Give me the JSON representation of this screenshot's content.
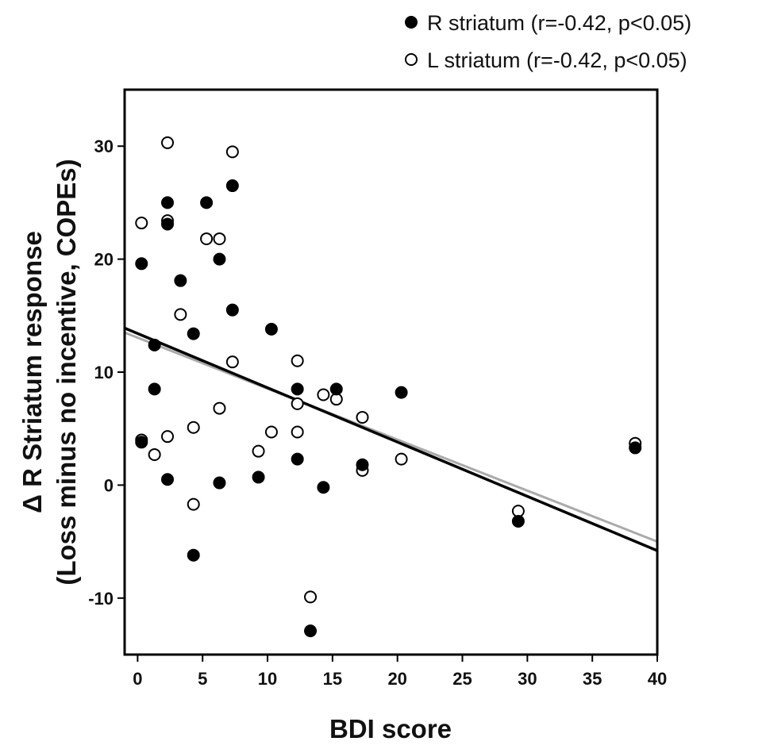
{
  "chart_data": {
    "type": "scatter",
    "xlabel": "BDI score",
    "ylabel_line1": "Δ R Striatum response",
    "ylabel_line2": "(Loss minus no incentive, COPEs)",
    "xlim": [
      -1,
      40
    ],
    "ylim": [
      -15,
      35
    ],
    "xticks": [
      0,
      5,
      10,
      15,
      20,
      25,
      30,
      35,
      40
    ],
    "yticks": [
      -10,
      0,
      10,
      20,
      30
    ],
    "grid": false,
    "legend_position": "above-top-right",
    "series": [
      {
        "name": "R striatum (r=-0.42, p<0.05)",
        "marker": "filled-circle",
        "color": "#000000",
        "points": [
          [
            0.3,
            19.6
          ],
          [
            0.3,
            3.8
          ],
          [
            1.3,
            12.4
          ],
          [
            1.3,
            8.5
          ],
          [
            2.3,
            25.0
          ],
          [
            2.3,
            23.1
          ],
          [
            2.3,
            0.5
          ],
          [
            3.3,
            18.1
          ],
          [
            4.3,
            13.4
          ],
          [
            4.3,
            -6.2
          ],
          [
            5.3,
            25.0
          ],
          [
            6.3,
            20.0
          ],
          [
            6.3,
            0.2
          ],
          [
            7.3,
            26.5
          ],
          [
            7.3,
            15.5
          ],
          [
            9.3,
            0.7
          ],
          [
            10.3,
            13.8
          ],
          [
            12.3,
            8.5
          ],
          [
            12.3,
            2.3
          ],
          [
            13.3,
            -12.9
          ],
          [
            14.3,
            -0.2
          ],
          [
            15.3,
            8.5
          ],
          [
            17.3,
            1.8
          ],
          [
            20.3,
            8.2
          ],
          [
            29.3,
            -3.2
          ],
          [
            38.3,
            3.3
          ]
        ]
      },
      {
        "name": "L striatum (r=-0.42, p<0.05)",
        "marker": "open-circle",
        "color": "#000000",
        "points": [
          [
            0.3,
            23.2
          ],
          [
            0.3,
            4.0
          ],
          [
            1.3,
            2.7
          ],
          [
            2.3,
            30.3
          ],
          [
            2.3,
            23.4
          ],
          [
            2.3,
            4.3
          ],
          [
            3.3,
            15.1
          ],
          [
            4.3,
            5.1
          ],
          [
            4.3,
            -1.7
          ],
          [
            5.3,
            21.8
          ],
          [
            6.3,
            21.8
          ],
          [
            6.3,
            6.8
          ],
          [
            7.3,
            29.5
          ],
          [
            7.3,
            10.9
          ],
          [
            9.3,
            3.0
          ],
          [
            10.3,
            4.7
          ],
          [
            12.3,
            11.0
          ],
          [
            12.3,
            7.2
          ],
          [
            12.3,
            4.7
          ],
          [
            13.3,
            -9.9
          ],
          [
            14.3,
            8.0
          ],
          [
            15.3,
            7.6
          ],
          [
            17.3,
            6.0
          ],
          [
            17.3,
            1.3
          ],
          [
            20.3,
            2.3
          ],
          [
            29.3,
            -2.3
          ],
          [
            38.3,
            3.7
          ]
        ]
      }
    ],
    "fit_lines": [
      {
        "for": "R striatum",
        "color": "#000000",
        "from": [
          -1,
          13.9
        ],
        "to": [
          40,
          -5.8
        ]
      },
      {
        "for": "L striatum",
        "color": "#aaaaaa",
        "from": [
          -1,
          13.5
        ],
        "to": [
          40,
          -5.0
        ]
      }
    ]
  }
}
